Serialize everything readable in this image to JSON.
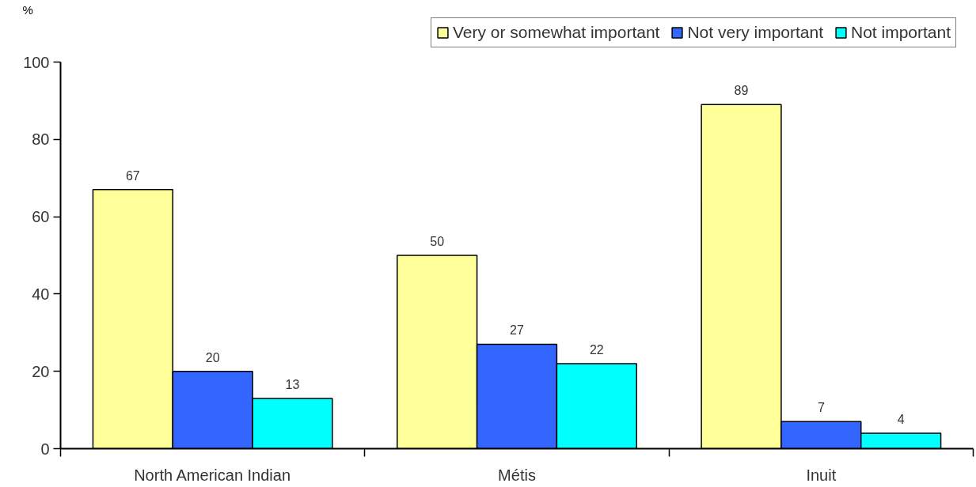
{
  "chart_data": {
    "type": "bar",
    "ylabel": "%",
    "categories": [
      "North American Indian",
      "Métis",
      "Inuit"
    ],
    "series": [
      {
        "name": "Very or somewhat important",
        "color": "#ffff99",
        "values": [
          67,
          50,
          89
        ]
      },
      {
        "name": "Not very important",
        "color": "#3366ff",
        "values": [
          20,
          27,
          7
        ]
      },
      {
        "name": "Not important",
        "color": "#00ffff",
        "values": [
          13,
          22,
          4
        ]
      }
    ],
    "ylim": [
      0,
      100
    ],
    "yticks": [
      0,
      20,
      40,
      60,
      80,
      100
    ],
    "data_labels": true,
    "grid": false,
    "legend": "top right"
  }
}
